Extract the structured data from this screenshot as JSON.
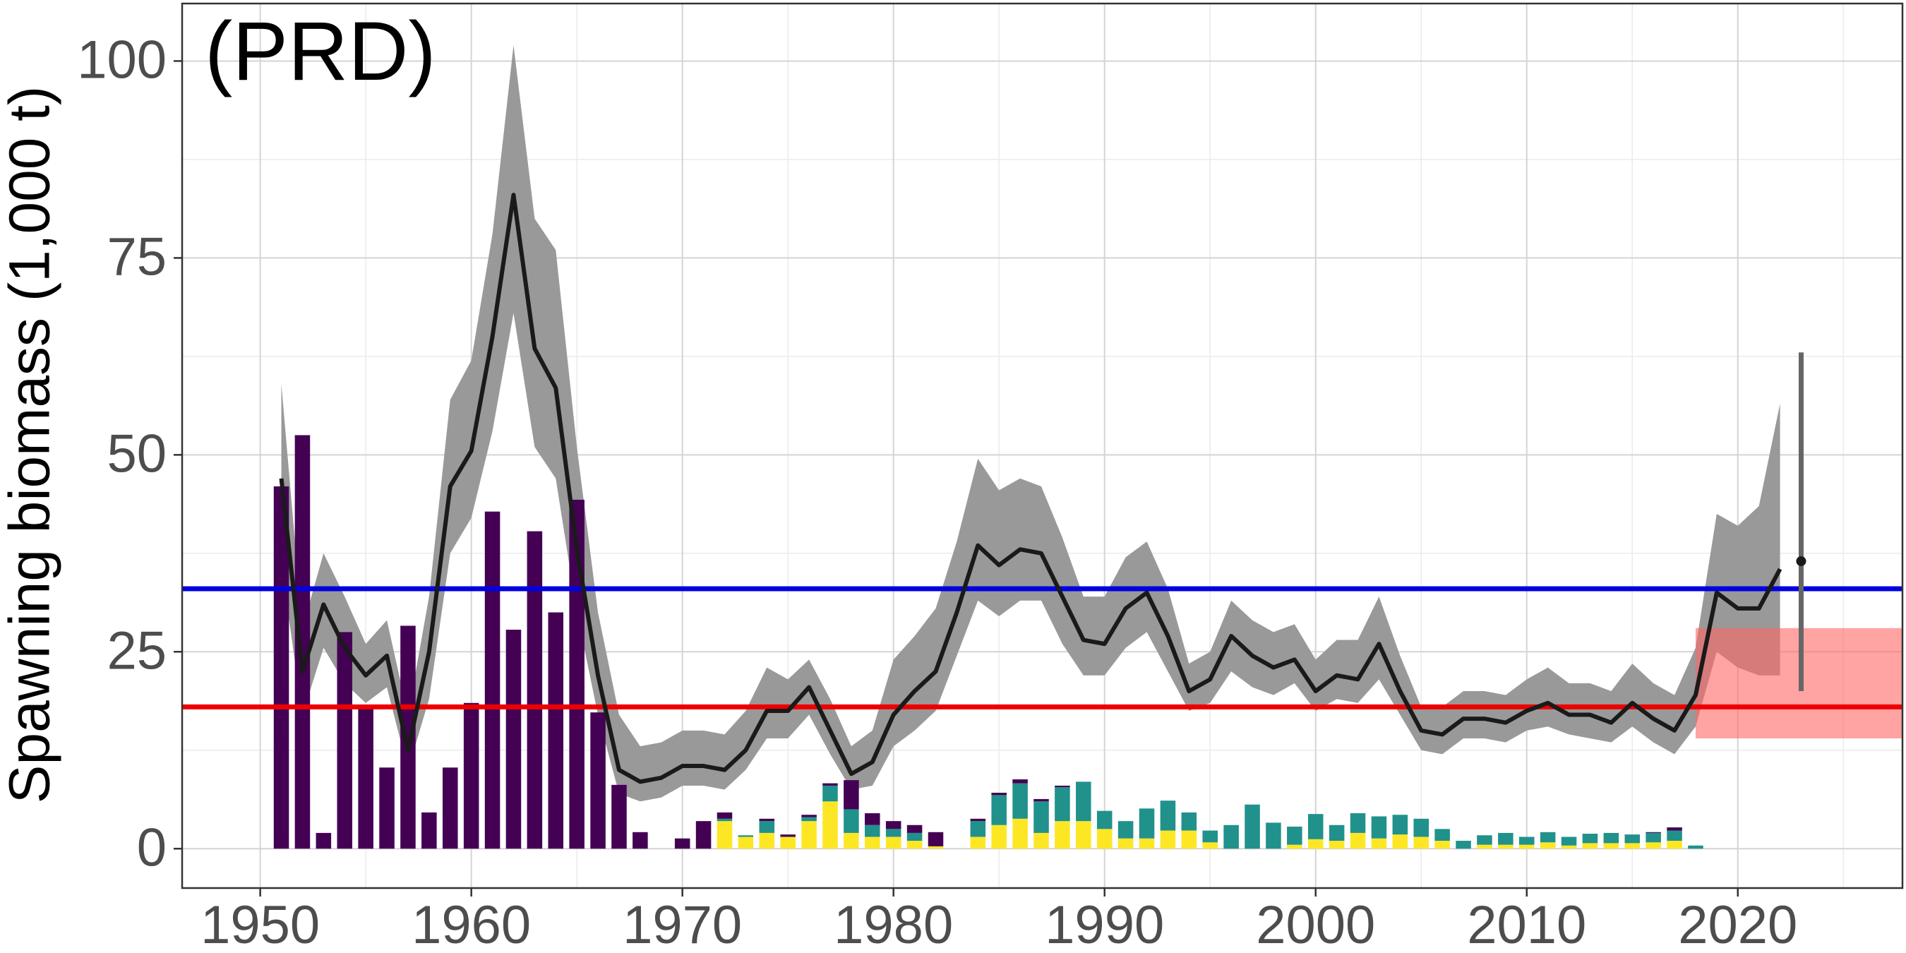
{
  "chart_data": {
    "type": "line",
    "annotation": "(PRD)",
    "y_label": "Spawning biomass (1,000 t)",
    "xlim": [
      1946.3,
      2027.8
    ],
    "ylim": [
      -5,
      107.3
    ],
    "xticks": [
      1950,
      1960,
      1970,
      1980,
      1990,
      2000,
      2010,
      2020
    ],
    "yticks": [
      0,
      25,
      50,
      75,
      100
    ],
    "grid": true,
    "biomass": {
      "color": "#1a1a1a",
      "band_color": "#999999",
      "x": [
        1951,
        1952,
        1953,
        1954,
        1955,
        1956,
        1957,
        1958,
        1959,
        1960,
        1961,
        1962,
        1963,
        1964,
        1965,
        1966,
        1967,
        1968,
        1969,
        1970,
        1971,
        1972,
        1973,
        1974,
        1975,
        1976,
        1977,
        1978,
        1979,
        1980,
        1981,
        1982,
        1983,
        1984,
        1985,
        1986,
        1987,
        1988,
        1989,
        1990,
        1991,
        1992,
        1993,
        1994,
        1995,
        1996,
        1997,
        1998,
        1999,
        2000,
        2001,
        2002,
        2003,
        2004,
        2005,
        2006,
        2007,
        2008,
        2009,
        2010,
        2011,
        2012,
        2013,
        2014,
        2015,
        2016,
        2017,
        2018,
        2019,
        2020,
        2021,
        2022
      ],
      "values": [
        47,
        22.5,
        31,
        25.5,
        22,
        24.5,
        12.5,
        25,
        46,
        50.5,
        65,
        83,
        63.5,
        58.5,
        38,
        22,
        10,
        8.5,
        9,
        10.5,
        10.5,
        10,
        12.5,
        17.5,
        17.5,
        20.5,
        15,
        9.5,
        11,
        17,
        20,
        22.5,
        30,
        38.5,
        36,
        38,
        37.5,
        32,
        26.5,
        26,
        30.5,
        32.5,
        27,
        20,
        21.5,
        27,
        24.5,
        23,
        24,
        20,
        22,
        21.5,
        26,
        20,
        15,
        14.5,
        16.5,
        16.5,
        16,
        17.5,
        18.5,
        17,
        17,
        16,
        18.5,
        16.5,
        15,
        19.5,
        32.5,
        30.5,
        30.5,
        35.5
      ],
      "lower": [
        36,
        17,
        25.5,
        21,
        18.5,
        20.5,
        10,
        19,
        37.5,
        42,
        53,
        68,
        51,
        47,
        30,
        17,
        7,
        6,
        6.5,
        8,
        8,
        7.5,
        10,
        14,
        14,
        17,
        12,
        7.5,
        8,
        13,
        15,
        17.5,
        24.5,
        31.5,
        29.5,
        31.5,
        31.5,
        26,
        22,
        22,
        25.5,
        27.5,
        22.5,
        17.5,
        18.5,
        22.5,
        20.5,
        19.5,
        21,
        17.5,
        19,
        18.5,
        21.5,
        17,
        12.5,
        12,
        14,
        14,
        13.5,
        15,
        15.5,
        14.5,
        14,
        13.5,
        15.5,
        13.5,
        12,
        15.5,
        25,
        23,
        22,
        22
      ],
      "upper": [
        59,
        28,
        37.5,
        32,
        26,
        29,
        17,
        32,
        57,
        62,
        78,
        102,
        80,
        76,
        51,
        30,
        17,
        13,
        13.5,
        15,
        15,
        14.5,
        17.5,
        23,
        21.5,
        24,
        19,
        13,
        15,
        24,
        27,
        30.5,
        39,
        49.5,
        45.5,
        47,
        46,
        39.5,
        32,
        32,
        37,
        39,
        33,
        23.5,
        25,
        31.5,
        29,
        27.5,
        28.5,
        24,
        26.5,
        26.5,
        32,
        24.5,
        18,
        18,
        20,
        20,
        19.5,
        21.5,
        23,
        21,
        21,
        20,
        23.5,
        21,
        19.5,
        25.5,
        42.5,
        41,
        43.5,
        56.5
      ]
    },
    "catch": {
      "x": [
        1951,
        1952,
        1953,
        1954,
        1955,
        1956,
        1957,
        1958,
        1959,
        1960,
        1961,
        1962,
        1963,
        1964,
        1965,
        1966,
        1967,
        1968,
        1969,
        1970,
        1971,
        1972,
        1973,
        1974,
        1975,
        1976,
        1977,
        1978,
        1979,
        1980,
        1981,
        1982,
        1983,
        1984,
        1985,
        1986,
        1987,
        1988,
        1989,
        1990,
        1991,
        1992,
        1993,
        1994,
        1995,
        1996,
        1997,
        1998,
        1999,
        2000,
        2001,
        2002,
        2003,
        2004,
        2005,
        2006,
        2007,
        2008,
        2009,
        2010,
        2011,
        2012,
        2013,
        2014,
        2015,
        2016,
        2017,
        2018
      ],
      "series": [
        {
          "color": "#fde725",
          "values": [
            0,
            0,
            0,
            0,
            0,
            0,
            0,
            0,
            0,
            0,
            0,
            0,
            0,
            0,
            0,
            0,
            0,
            0,
            0,
            0,
            0,
            3.5,
            1.5,
            2,
            1.5,
            3.5,
            6,
            2,
            1.5,
            1.5,
            1,
            0.3,
            0,
            1.5,
            3,
            3.8,
            2,
            3.5,
            3.5,
            2.5,
            1.3,
            1.3,
            2.3,
            2.3,
            0.8,
            0,
            0,
            0,
            0.5,
            1.2,
            1,
            2,
            1.3,
            1.8,
            1.5,
            1,
            0,
            0.5,
            0.5,
            0.5,
            0.8,
            0.4,
            0.7,
            0.7,
            0.7,
            0.8,
            1,
            0
          ]
        },
        {
          "color": "#21918c",
          "values": [
            0,
            0,
            0,
            0,
            0,
            0,
            0,
            0,
            0,
            0,
            0,
            0,
            0,
            0,
            0,
            0,
            0,
            0,
            0,
            0,
            0,
            0.3,
            0.2,
            1.5,
            0,
            0.5,
            2,
            3,
            1.5,
            1,
            1,
            0,
            0,
            2,
            3.8,
            4.5,
            4,
            4.3,
            5,
            2.3,
            2.2,
            3.8,
            3.8,
            2.3,
            1.5,
            3,
            5.6,
            3.3,
            2.3,
            3.2,
            2,
            2.5,
            2.8,
            2.5,
            2.3,
            1.5,
            1,
            1.2,
            1.5,
            1,
            1.3,
            1.1,
            1.2,
            1.3,
            1.1,
            1.2,
            1.3,
            0.4
          ]
        },
        {
          "color": "#440154",
          "values": [
            46,
            52.5,
            2,
            27.5,
            18,
            10.3,
            28.3,
            4.6,
            10.3,
            18.5,
            42.8,
            27.8,
            40.3,
            30,
            44.3,
            17.3,
            8.1,
            2.1,
            0,
            1.3,
            3.5,
            0.8,
            0,
            0.3,
            0.3,
            0.3,
            0.3,
            3.7,
            1.5,
            1,
            1,
            1.8,
            0,
            0.3,
            0.3,
            0.5,
            0.3,
            0.2,
            0,
            0,
            0,
            0,
            0,
            0,
            0,
            0,
            0,
            0,
            0,
            0,
            0,
            0,
            0,
            0,
            0,
            0,
            0,
            0,
            0,
            0,
            0,
            0,
            0,
            0,
            0,
            0.1,
            0.4,
            0
          ]
        }
      ]
    },
    "reference_lines": [
      {
        "value": 33,
        "color": "#0000e0"
      },
      {
        "value": 18,
        "color": "#ee0000"
      }
    ],
    "reference_band": {
      "x": [
        2018,
        2028
      ],
      "y": [
        14,
        28
      ],
      "color": "#ff6666"
    },
    "projection": {
      "x": 2023,
      "value": 36.5,
      "lower": 20,
      "upper": 63,
      "color": "#1a1a1a",
      "bar_color": "#666666"
    }
  }
}
